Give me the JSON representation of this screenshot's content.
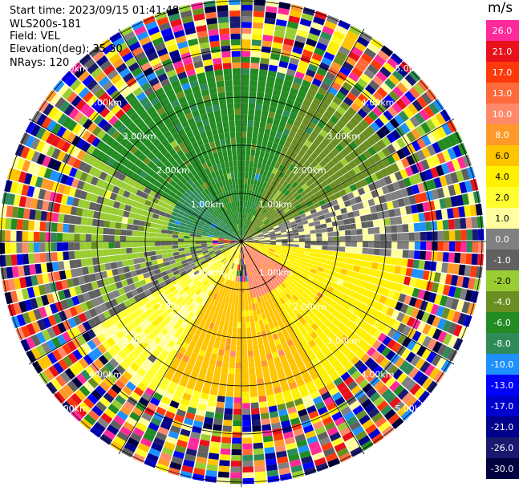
{
  "header": {
    "start_time": "Start time: 2023/09/15 01:41:48",
    "instrument": "WLS200s-181",
    "field": "Field: VEL",
    "elevation": "Elevation(deg): 35.30",
    "nrays": "NRays: 120"
  },
  "colorbar": {
    "unit": "m/s",
    "bins": [
      {
        "label": "26.0",
        "color": "#ff2a9a"
      },
      {
        "label": "21.0",
        "color": "#e8101a"
      },
      {
        "label": "17.0",
        "color": "#ff3a0a"
      },
      {
        "label": "13.0",
        "color": "#ff6a3a"
      },
      {
        "label": "10.0",
        "color": "#ff8a6a"
      },
      {
        "label": "8.0",
        "color": "#ff9a2a"
      },
      {
        "label": "6.0",
        "color": "#ffc400"
      },
      {
        "label": "4.0",
        "color": "#fff000"
      },
      {
        "label": "2.0",
        "color": "#ffff30"
      },
      {
        "label": "1.0",
        "color": "#ffffa0"
      },
      {
        "label": "0.0",
        "color": "#808080"
      },
      {
        "label": "-1.0",
        "color": "#606060"
      },
      {
        "label": "-2.0",
        "color": "#9acd32"
      },
      {
        "label": "-4.0",
        "color": "#6b8e23"
      },
      {
        "label": "-6.0",
        "color": "#228b22"
      },
      {
        "label": "-8.0",
        "color": "#2e8b57"
      },
      {
        "label": "-10.0",
        "color": "#1e90ff"
      },
      {
        "label": "-13.0",
        "color": "#0000ff"
      },
      {
        "label": "-17.0",
        "color": "#0000cd"
      },
      {
        "label": "-21.0",
        "color": "#00008b"
      },
      {
        "label": "-26.0",
        "color": "#191970"
      },
      {
        "label": "-30.0",
        "color": "#000040"
      }
    ]
  },
  "chart_data": {
    "type": "heatmap",
    "projection": "PPI (polar)",
    "field": "VEL",
    "rays": 120,
    "range_rings": [
      {
        "range_km": 1.0,
        "label": "1.00km"
      },
      {
        "range_km": 2.0,
        "label": "2.00km"
      },
      {
        "range_km": 3.0,
        "label": "3.00km"
      },
      {
        "range_km": 4.0,
        "label": "4.00km"
      },
      {
        "range_km": 5.0,
        "label": "5.00km"
      }
    ],
    "max_range_km": 5.1,
    "azimuth_lines_deg": [
      0,
      30,
      60,
      90,
      120,
      150,
      180,
      210,
      240,
      270,
      300,
      330
    ],
    "regions": [
      {
        "description": "north sector inbound",
        "azimuth_deg": [
          300,
          25
        ],
        "range_km": [
          0,
          3.6
        ],
        "velocity_ms": -6.0
      },
      {
        "description": "northwest inner",
        "azimuth_deg": [
          280,
          320
        ],
        "range_km": [
          0,
          1.5
        ],
        "velocity_ms": -8.0
      },
      {
        "description": "west sector",
        "azimuth_deg": [
          240,
          300
        ],
        "range_km": [
          0.6,
          3.6
        ],
        "velocity_ms": -2.0
      },
      {
        "description": "northeast sector",
        "azimuth_deg": [
          25,
          70
        ],
        "range_km": [
          0,
          3.6
        ],
        "velocity_ms": -4.0
      },
      {
        "description": "east zero band",
        "azimuth_deg": [
          65,
          95
        ],
        "range_km": [
          0,
          3.6
        ],
        "velocity_ms": 0.0
      },
      {
        "description": "southwest zero band",
        "azimuth_deg": [
          235,
          260
        ],
        "range_km": [
          0,
          3.6
        ],
        "velocity_ms": -1.0
      },
      {
        "description": "southeast outbound",
        "azimuth_deg": [
          95,
          170
        ],
        "range_km": [
          0,
          3.4
        ],
        "velocity_ms": 4.0
      },
      {
        "description": "south outbound",
        "azimuth_deg": [
          150,
          210
        ],
        "range_km": [
          0.8,
          3.2
        ],
        "velocity_ms": 6.0
      },
      {
        "description": "south core",
        "azimuth_deg": [
          120,
          170
        ],
        "range_km": [
          0.1,
          1.2
        ],
        "velocity_ms": 10.0
      },
      {
        "description": "southwest outbound",
        "azimuth_deg": [
          190,
          240
        ],
        "range_km": [
          0,
          3.6
        ],
        "velocity_ms": 2.0
      },
      {
        "description": "outer noise",
        "azimuth_deg": [
          0,
          360
        ],
        "range_km": [
          3.6,
          5.1
        ],
        "velocity_ms": null
      }
    ]
  }
}
